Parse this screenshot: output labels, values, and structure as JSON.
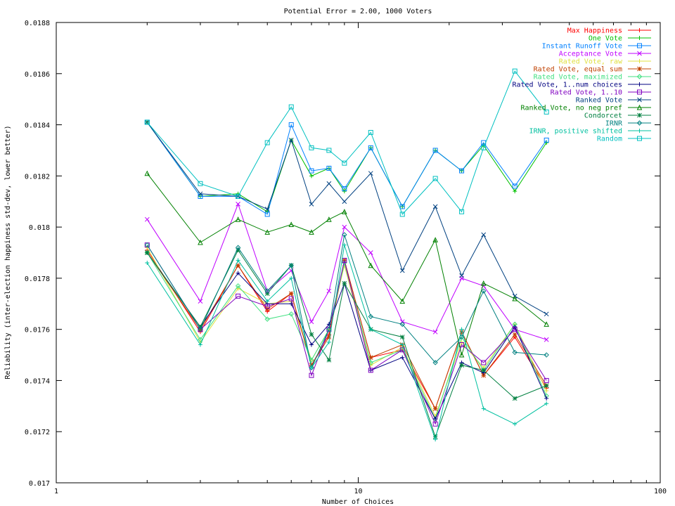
{
  "chart_data": {
    "type": "line",
    "title": "Potential Error = 2.00, 1000 Voters",
    "xlabel": "Number of Choices",
    "ylabel": "Reliability (inter-election happiness std-dev, lower better)",
    "x_scale": "log",
    "xlim": [
      1,
      100
    ],
    "ylim": [
      0.017,
      0.0188
    ],
    "x_ticks": [
      {
        "value": 1,
        "label": "1"
      },
      {
        "value": 10,
        "label": "10"
      },
      {
        "value": 100,
        "label": "100"
      }
    ],
    "y_ticks": [
      {
        "value": 0.017,
        "label": "0.017"
      },
      {
        "value": 0.0172,
        "label": "0.0172"
      },
      {
        "value": 0.0174,
        "label": "0.0174"
      },
      {
        "value": 0.0176,
        "label": "0.0176"
      },
      {
        "value": 0.0178,
        "label": "0.0178"
      },
      {
        "value": 0.018,
        "label": "0.018"
      },
      {
        "value": 0.0182,
        "label": "0.0182"
      },
      {
        "value": 0.0184,
        "label": "0.0184"
      },
      {
        "value": 0.0186,
        "label": "0.0186"
      },
      {
        "value": 0.0188,
        "label": "0.0188"
      }
    ],
    "grid": false,
    "legend_position": "top-right",
    "x": [
      2,
      3,
      4,
      5,
      6,
      7,
      8,
      9,
      11,
      14,
      18,
      22,
      26,
      33,
      42
    ],
    "series": [
      {
        "name": "Max Happiness",
        "color": "#ff0000",
        "marker": "plus",
        "values": [
          0.01791,
          0.01759,
          0.01785,
          0.01767,
          0.01774,
          0.01746,
          0.01758,
          0.01787,
          0.01749,
          0.01752,
          0.01729,
          0.01759,
          0.01742,
          0.01757,
          0.01737
        ]
      },
      {
        "name": "One Vote",
        "color": "#00c000",
        "marker": "plus",
        "values": [
          0.01841,
          0.01812,
          0.01813,
          0.01806,
          0.01834,
          0.0182,
          0.01823,
          0.01814,
          0.01831,
          0.01808,
          0.0183,
          0.01822,
          0.01832,
          0.01814,
          0.01833
        ]
      },
      {
        "name": "Instant Runoff Vote",
        "color": "#0080ff",
        "marker": "square",
        "values": [
          0.01841,
          0.01812,
          0.01812,
          0.01805,
          0.0184,
          0.01822,
          0.01823,
          0.01815,
          0.01831,
          0.01808,
          0.0183,
          0.01822,
          0.01833,
          0.01816,
          0.01834
        ]
      },
      {
        "name": "Acceptance Vote",
        "color": "#c000ff",
        "marker": "x",
        "values": [
          0.01803,
          0.01771,
          0.01809,
          0.01775,
          0.01783,
          0.01763,
          0.01775,
          0.018,
          0.0179,
          0.01763,
          0.01759,
          0.0178,
          0.01777,
          0.0176,
          0.01756
        ]
      },
      {
        "name": "Rated Vote, raw",
        "color": "#e0e040",
        "marker": "plus",
        "values": [
          0.01792,
          0.01755,
          0.01776,
          0.0177,
          0.01771,
          0.01748,
          0.0176,
          0.01785,
          0.01746,
          0.01753,
          0.01726,
          0.01755,
          0.01745,
          0.01762,
          0.01736
        ]
      },
      {
        "name": "Rated Vote, equal sum",
        "color": "#c04000",
        "marker": "star",
        "values": [
          0.0179,
          0.0176,
          0.01785,
          0.01768,
          0.01774,
          0.01746,
          0.01757,
          0.01787,
          0.01749,
          0.01754,
          0.01729,
          0.01759,
          0.01742,
          0.01758,
          0.01738
        ]
      },
      {
        "name": "Rated Vote, maximized",
        "color": "#40e080",
        "marker": "diamond",
        "values": [
          0.0179,
          0.01756,
          0.01777,
          0.01764,
          0.01766,
          0.01748,
          0.0176,
          0.01786,
          0.01747,
          0.01752,
          0.01725,
          0.01757,
          0.01744,
          0.01762,
          0.01734
        ]
      },
      {
        "name": "Rated Vote, 1..num choices",
        "color": "#000080",
        "marker": "plus",
        "values": [
          0.0179,
          0.01761,
          0.01782,
          0.0177,
          0.0177,
          0.01754,
          0.01762,
          0.01778,
          0.01744,
          0.01749,
          0.01725,
          0.01747,
          0.01743,
          0.01761,
          0.01733
        ]
      },
      {
        "name": "Rated Vote, 1..10",
        "color": "#8000c0",
        "marker": "square",
        "values": [
          0.01793,
          0.0176,
          0.01773,
          0.01769,
          0.01772,
          0.01742,
          0.0176,
          0.01787,
          0.01744,
          0.01752,
          0.01723,
          0.01754,
          0.01747,
          0.0176,
          0.0174
        ]
      },
      {
        "name": "Ranked Vote",
        "color": "#004080",
        "marker": "x",
        "values": [
          0.01841,
          0.01813,
          0.01812,
          0.01807,
          0.01834,
          0.01809,
          0.01817,
          0.0181,
          0.01821,
          0.01783,
          0.01808,
          0.01781,
          0.01797,
          0.01773,
          0.01766
        ]
      },
      {
        "name": "Ranked Vote, no neg pref",
        "color": "#008000",
        "marker": "triangle",
        "values": [
          0.01821,
          0.01794,
          0.01803,
          0.01798,
          0.01801,
          0.01798,
          0.01803,
          0.01806,
          0.01785,
          0.01771,
          0.01795,
          0.0175,
          0.01778,
          0.01772,
          0.01762
        ]
      },
      {
        "name": "Condorcet",
        "color": "#008040",
        "marker": "star",
        "values": [
          0.0179,
          0.01761,
          0.01791,
          0.01774,
          0.01785,
          0.01758,
          0.01748,
          0.01778,
          0.0176,
          0.01757,
          0.01718,
          0.01746,
          0.01744,
          0.01733,
          0.01738
        ]
      },
      {
        "name": "IRNR",
        "color": "#008080",
        "marker": "diamond",
        "values": [
          0.01793,
          0.0176,
          0.01792,
          0.01775,
          0.01785,
          0.01745,
          0.0176,
          0.01797,
          0.01765,
          0.01762,
          0.01747,
          0.01757,
          0.01775,
          0.01751,
          0.0175
        ]
      },
      {
        "name": "IRNR, positive shifted",
        "color": "#00c0a0",
        "marker": "plus",
        "values": [
          0.01786,
          0.01754,
          0.01787,
          0.01771,
          0.0178,
          0.01745,
          0.01755,
          0.01793,
          0.0176,
          0.01754,
          0.01717,
          0.0176,
          0.01729,
          0.01723,
          0.01731
        ]
      },
      {
        "name": "Random",
        "color": "#00c0c0",
        "marker": "square",
        "values": [
          0.01841,
          0.01817,
          0.01812,
          0.01833,
          0.01847,
          0.01831,
          0.0183,
          0.01825,
          0.01837,
          0.01805,
          0.01819,
          0.01806,
          0.01831,
          0.01861,
          0.01845
        ]
      }
    ]
  }
}
